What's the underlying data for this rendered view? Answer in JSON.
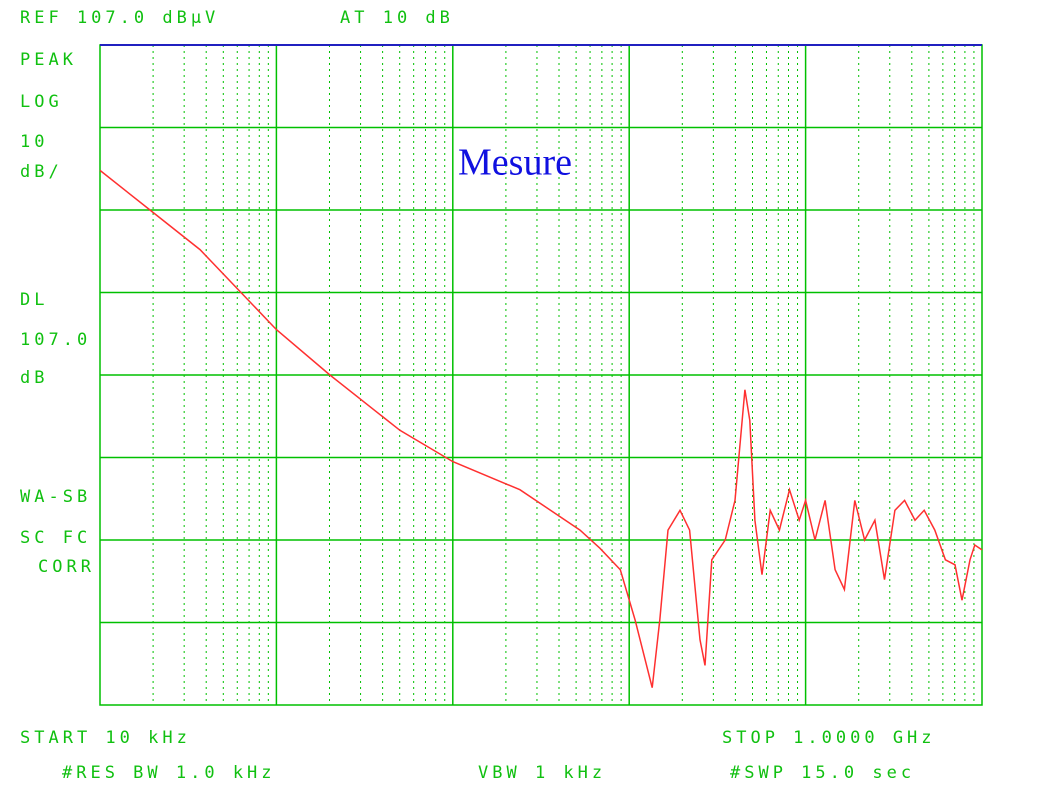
{
  "chart_data": {
    "type": "line",
    "annotation": "Mesure",
    "xscale": "log",
    "grid": true,
    "color": "#ff3030",
    "grid_color": "#00c000",
    "xlim": [
      10000,
      1000000000
    ],
    "ylim": [
      27,
      107
    ],
    "xticks": [
      100000,
      1000000,
      10000000,
      100000000
    ],
    "yticks": [
      97,
      87,
      77,
      67,
      57,
      47,
      37
    ],
    "x": [
      10000,
      19200,
      36900,
      100000,
      201000,
      501000,
      1000000,
      2400000,
      5260000,
      6830000,
      8900000,
      10800000,
      12300000,
      13500000,
      14900000,
      16600000,
      19400000,
      22000000,
      25200000,
      26900000,
      29400000,
      35000000,
      39800000,
      45300000,
      48300000,
      51600000,
      56600000,
      63000000,
      71000000,
      81000000,
      92000000,
      100000000,
      113000000,
      129000000,
      147000000,
      166000000,
      190000000,
      216000000,
      247000000,
      280000000,
      321000000,
      364000000,
      417000000,
      470000000,
      540000000,
      620000000,
      703000000,
      770000000,
      855000000,
      910000000,
      1000000000
    ],
    "values": [
      91.8,
      87.0,
      82.2,
      72.5,
      67.0,
      60.3,
      56.5,
      53.1,
      48.2,
      46.0,
      43.4,
      37.3,
      32.5,
      29.1,
      37.3,
      48.2,
      50.6,
      48.2,
      34.9,
      31.8,
      44.6,
      47.0,
      51.8,
      65.2,
      61.5,
      49.4,
      42.8,
      50.6,
      48.2,
      53.1,
      49.4,
      51.8,
      47.0,
      51.8,
      43.4,
      41.0,
      51.8,
      47.0,
      49.4,
      42.2,
      50.6,
      51.8,
      49.4,
      50.6,
      48.2,
      44.6,
      44.0,
      39.7,
      44.6,
      46.4,
      45.8
    ]
  },
  "display": {
    "ref": "REF 107.0 dBµV",
    "atten": "AT 10 dB",
    "side": [
      "PEAK",
      "LOG",
      "10",
      "dB/",
      "DL",
      "107.0",
      "dB",
      "WA-SB",
      "SC FC",
      "CORR"
    ],
    "start": "START 10 kHz",
    "stop": "STOP 1.0000 GHz",
    "rbw": "#RES BW 1.0 kHz",
    "vbw": "VBW 1 kHz",
    "swp": "#SWP 15.0 sec"
  }
}
